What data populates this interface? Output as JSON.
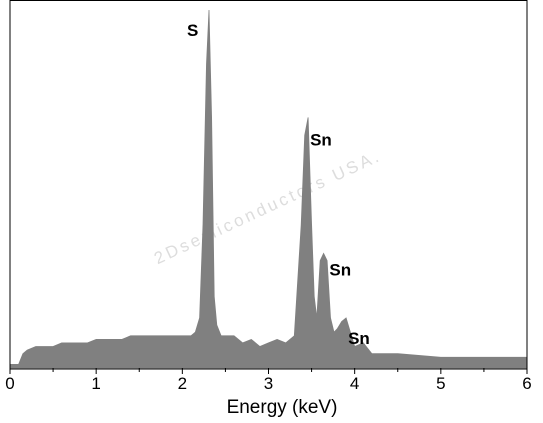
{
  "chart_data": {
    "type": "area",
    "title": "",
    "xlabel": "Energy (keV)",
    "ylabel": "",
    "xlim": [
      0,
      6
    ],
    "ylim": [
      0,
      100
    ],
    "xticks": [
      "0",
      "1",
      "2",
      "3",
      "4",
      "5",
      "6"
    ],
    "grid": false,
    "legend": "none",
    "fill_color": "#808080",
    "series": [
      {
        "x": [
          0.0,
          0.1,
          0.15,
          0.2,
          0.3,
          0.4,
          0.5,
          0.6,
          0.7,
          0.8,
          0.9,
          1.0,
          1.1,
          1.2,
          1.3,
          1.4,
          1.5,
          1.6,
          1.7,
          1.8,
          1.9,
          2.0,
          2.05,
          2.1,
          2.15,
          2.2,
          2.24,
          2.28,
          2.31,
          2.34,
          2.37,
          2.4,
          2.45,
          2.5,
          2.6,
          2.7,
          2.8,
          2.9,
          3.0,
          3.1,
          3.2,
          3.3,
          3.38,
          3.42,
          3.46,
          3.5,
          3.53,
          3.56,
          3.6,
          3.64,
          3.68,
          3.72,
          3.76,
          3.8,
          3.85,
          3.9,
          3.95,
          4.0,
          4.1,
          4.2,
          4.3,
          4.5,
          5.0,
          5.5,
          6.0
        ],
        "y": [
          1,
          1,
          4,
          5,
          6,
          6,
          6,
          7,
          7,
          7,
          7,
          8,
          8,
          8,
          8,
          9,
          9,
          9,
          9,
          9,
          9,
          9,
          9,
          9,
          10,
          14,
          40,
          85,
          100,
          70,
          20,
          12,
          9,
          9,
          9,
          7,
          8,
          6,
          7,
          8,
          7,
          9,
          40,
          65,
          70,
          40,
          20,
          14,
          30,
          32,
          30,
          14,
          10,
          11,
          13,
          14,
          10,
          6,
          7,
          4,
          4,
          4,
          3,
          3,
          3
        ]
      }
    ],
    "annotations": [
      {
        "text": "S",
        "x": 2.31,
        "y": 100
      },
      {
        "text": "Sn",
        "x": 3.46,
        "y": 70
      },
      {
        "text": "Sn",
        "x": 3.66,
        "y": 32
      },
      {
        "text": "Sn",
        "x": 3.9,
        "y": 14
      }
    ]
  },
  "watermark": "2Dsemiconductors USA."
}
